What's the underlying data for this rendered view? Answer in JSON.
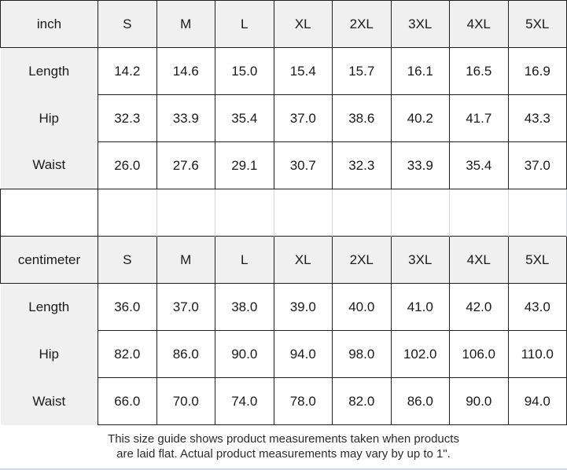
{
  "colors": {
    "header_bg": "#f0f0f0",
    "cell_bg": "#ffffff",
    "border_dark": "#1f1f1f",
    "border_light": "#ccd4e0",
    "text": "#1a1a1a"
  },
  "size_guide": {
    "sections": [
      {
        "unit": "inch",
        "sizes": [
          "S",
          "M",
          "L",
          "XL",
          "2XL",
          "3XL",
          "4XL",
          "5XL"
        ],
        "rows": [
          {
            "label": "Length",
            "values": [
              "14.2",
              "14.6",
              "15.0",
              "15.4",
              "15.7",
              "16.1",
              "16.5",
              "16.9"
            ]
          },
          {
            "label": "Hip",
            "values": [
              "32.3",
              "33.9",
              "35.4",
              "37.0",
              "38.6",
              "40.2",
              "41.7",
              "43.3"
            ]
          },
          {
            "label": "Waist",
            "values": [
              "26.0",
              "27.6",
              "29.1",
              "30.7",
              "32.3",
              "33.9",
              "35.4",
              "37.0"
            ]
          }
        ]
      },
      {
        "unit": "centimeter",
        "sizes": [
          "S",
          "M",
          "L",
          "XL",
          "2XL",
          "3XL",
          "4XL",
          "5XL"
        ],
        "rows": [
          {
            "label": "Length",
            "values": [
              "36.0",
              "37.0",
              "38.0",
              "39.0",
              "40.0",
              "41.0",
              "42.0",
              "43.0"
            ]
          },
          {
            "label": "Hip",
            "values": [
              "82.0",
              "86.0",
              "90.0",
              "94.0",
              "98.0",
              "102.0",
              "106.0",
              "110.0"
            ]
          },
          {
            "label": "Waist",
            "values": [
              "66.0",
              "70.0",
              "74.0",
              "78.0",
              "82.0",
              "86.0",
              "90.0",
              "94.0"
            ]
          }
        ]
      }
    ],
    "note_line1": "This size guide shows product measurements taken when products",
    "note_line2": "are laid flat. Actual product measurements may vary by up to 1\"."
  }
}
